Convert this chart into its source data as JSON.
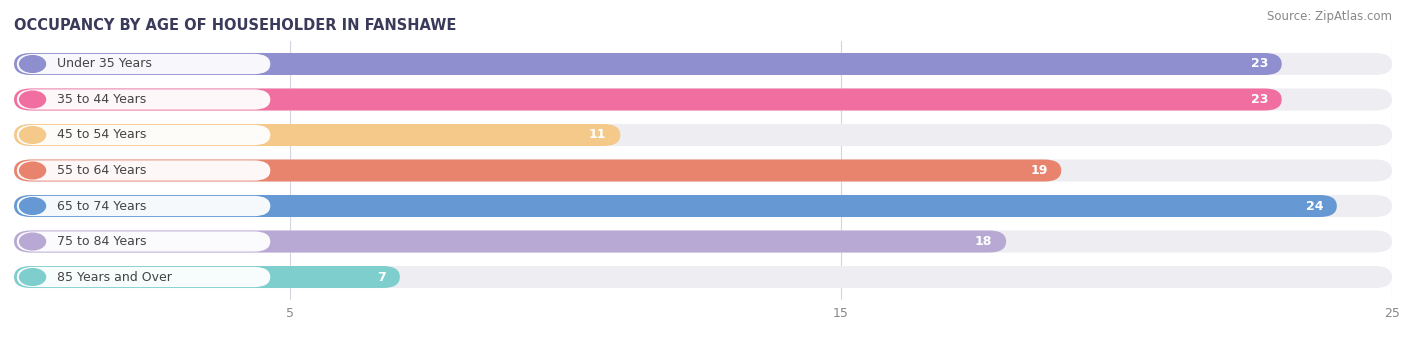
{
  "title": "OCCUPANCY BY AGE OF HOUSEHOLDER IN FANSHAWE",
  "source": "Source: ZipAtlas.com",
  "categories": [
    "Under 35 Years",
    "35 to 44 Years",
    "45 to 54 Years",
    "55 to 64 Years",
    "65 to 74 Years",
    "75 to 84 Years",
    "85 Years and Over"
  ],
  "values": [
    23,
    23,
    11,
    19,
    24,
    18,
    7
  ],
  "bar_colors": [
    "#8f8fd0",
    "#f06fa0",
    "#f5c98a",
    "#e8836e",
    "#6699d4",
    "#b8a8d4",
    "#7ecece"
  ],
  "bar_bg_color": "#ededf2",
  "label_pill_color": "#ffffff",
  "xlim": [
    0,
    25
  ],
  "xticks": [
    5,
    15,
    25
  ],
  "title_fontsize": 10.5,
  "source_fontsize": 8.5,
  "label_fontsize": 9,
  "value_fontsize": 9,
  "background_color": "#ffffff",
  "bar_height": 0.62,
  "bar_gap": 0.38
}
